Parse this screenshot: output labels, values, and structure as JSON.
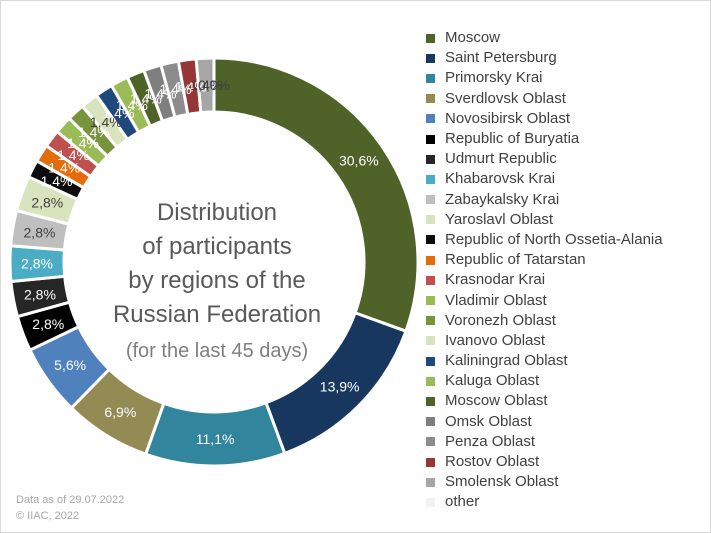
{
  "chart_data": {
    "type": "pie",
    "variant": "doughnut",
    "title_lines": [
      "Distribution",
      "of participants",
      "by regions of the",
      "Russian Federation"
    ],
    "subtitle": "(for the last 45 days)",
    "legend_position": "right",
    "series": [
      {
        "name": "Moscow",
        "value": 30.6,
        "label": "30,6%",
        "color": "#4f6228"
      },
      {
        "name": "Saint Petersburg",
        "value": 13.9,
        "label": "13,9%",
        "color": "#17375e"
      },
      {
        "name": "Primorsky Krai",
        "value": 11.1,
        "label": "11,1%",
        "color": "#31859c"
      },
      {
        "name": "Sverdlovsk Oblast",
        "value": 6.9,
        "label": "6,9%",
        "color": "#948a54"
      },
      {
        "name": "Novosibirsk Oblast",
        "value": 5.6,
        "label": "5,6%",
        "color": "#4f81bd"
      },
      {
        "name": "Republic of Buryatia",
        "value": 2.8,
        "label": "2,8%",
        "color": "#000000"
      },
      {
        "name": "Udmurt Republic",
        "value": 2.8,
        "label": "2,8%",
        "color": "#262626"
      },
      {
        "name": "Khabarovsk Krai",
        "value": 2.8,
        "label": "2,8%",
        "color": "#4bacc6"
      },
      {
        "name": "Zabaykalsky Krai",
        "value": 2.8,
        "label": "2,8%",
        "color": "#bfbfbf"
      },
      {
        "name": "Yaroslavl Oblast",
        "value": 2.8,
        "label": "2,8%",
        "color": "#d7e4bd"
      },
      {
        "name": "Republic of North Ossetia-Alania",
        "value": 1.4,
        "label": "1,4%",
        "color": "#0d0d0d"
      },
      {
        "name": "Republic of Tatarstan",
        "value": 1.4,
        "label": "1,4%",
        "color": "#e46c0a"
      },
      {
        "name": "Krasnodar Krai",
        "value": 1.4,
        "label": "1,4%",
        "color": "#c0504d"
      },
      {
        "name": "Vladimir Oblast",
        "value": 1.4,
        "label": "1,4%",
        "color": "#9bbb59"
      },
      {
        "name": "Voronezh Oblast",
        "value": 1.4,
        "label": "1,4%",
        "color": "#77933c"
      },
      {
        "name": "Ivanovo Oblast",
        "value": 1.4,
        "label": "1,4%",
        "color": "#d7e4bd"
      },
      {
        "name": "Kaliningrad Oblast",
        "value": 1.4,
        "label": "1,4%",
        "color": "#1f497d"
      },
      {
        "name": "Kaluga Oblast",
        "value": 1.4,
        "label": "1,4%",
        "color": "#9bbb59"
      },
      {
        "name": "Moscow Oblast",
        "value": 1.4,
        "label": "1,4%",
        "color": "#4f6228"
      },
      {
        "name": "Omsk Oblast",
        "value": 1.4,
        "label": "1,4%",
        "color": "#7f7f7f"
      },
      {
        "name": "Penza Oblast",
        "value": 1.4,
        "label": "1,4%",
        "color": "#8c8c8c"
      },
      {
        "name": "Rostov Oblast",
        "value": 1.4,
        "label": "1,4%",
        "color": "#953735"
      },
      {
        "name": "Smolensk Oblast",
        "value": 1.4,
        "label": "1,4%",
        "color": "#a6a6a6"
      },
      {
        "name": "other",
        "value": 0.0,
        "label": "0,0%",
        "color": "#f2f2f2"
      }
    ]
  },
  "footnote": {
    "date_line": "Data as of 29.07.2022",
    "copyright_line": "© IIAC, 2022"
  }
}
